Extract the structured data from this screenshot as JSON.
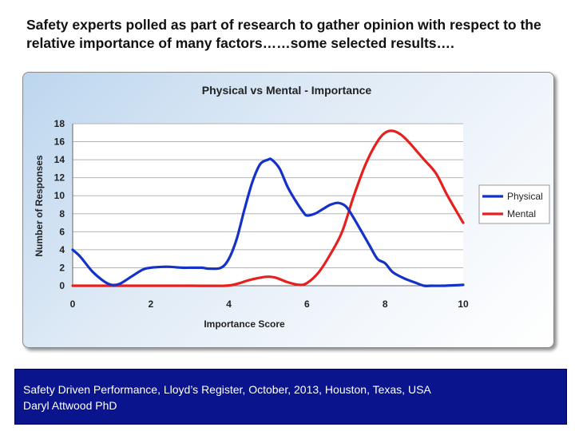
{
  "slide": {
    "title": "Safety experts polled as part of research to gather opinion with respect to the relative importance of many factors……some selected results….",
    "footer_line1": "Safety Driven Performance, Lloyd’s Register, October, 2013, Houston, Texas, USA",
    "footer_line2": "Daryl Attwood PhD"
  },
  "colors": {
    "physical": "#1432c8",
    "mental": "#e6201e",
    "footer_bg": "#0a148c"
  },
  "chart_data": {
    "type": "line",
    "title": "Physical vs Mental -  Importance",
    "xlabel": "Importance Score",
    "ylabel": "Number of Responses",
    "xlim": [
      0,
      10
    ],
    "ylim": [
      0,
      18
    ],
    "xticks": [
      0,
      2,
      4,
      6,
      8,
      10
    ],
    "yticks": [
      0,
      2,
      4,
      6,
      8,
      10,
      12,
      14,
      16,
      18
    ],
    "grid": true,
    "legend": "right",
    "series": [
      {
        "name": "Physical",
        "color": "#1432c8",
        "x": [
          0,
          0.2,
          0.5,
          0.8,
          1.0,
          1.2,
          1.5,
          1.8,
          2.0,
          2.3,
          2.5,
          2.8,
          3.0,
          3.3,
          3.5,
          3.8,
          4.0,
          4.2,
          4.4,
          4.6,
          4.8,
          5.0,
          5.1,
          5.3,
          5.5,
          5.7,
          5.9,
          6.0,
          6.2,
          6.4,
          6.6,
          6.8,
          7.0,
          7.2,
          7.4,
          7.6,
          7.8,
          8.0,
          8.2,
          8.5,
          8.8,
          9.0,
          9.2,
          9.5,
          10.0
        ],
        "values": [
          4.0,
          3.2,
          1.6,
          0.5,
          0.1,
          0.2,
          1.0,
          1.8,
          2.0,
          2.1,
          2.1,
          2.0,
          2.0,
          2.0,
          1.9,
          2.0,
          3.0,
          5.2,
          8.5,
          11.5,
          13.5,
          14.0,
          14.0,
          13.0,
          11.0,
          9.5,
          8.2,
          7.8,
          8.0,
          8.5,
          9.0,
          9.2,
          8.8,
          7.5,
          6.0,
          4.5,
          3.0,
          2.5,
          1.5,
          0.8,
          0.3,
          0.0,
          0.0,
          0.0,
          0.1
        ]
      },
      {
        "name": "Mental",
        "color": "#e6201e",
        "x": [
          0,
          1,
          2,
          3,
          3.9,
          4.2,
          4.5,
          4.8,
          5.0,
          5.2,
          5.5,
          5.8,
          6.0,
          6.3,
          6.6,
          6.9,
          7.2,
          7.5,
          7.8,
          8.0,
          8.2,
          8.4,
          8.6,
          8.8,
          9.0,
          9.3,
          9.6,
          10.0
        ],
        "values": [
          0,
          0,
          0,
          0,
          0,
          0.2,
          0.6,
          0.9,
          1.0,
          0.9,
          0.4,
          0.1,
          0.3,
          1.5,
          3.5,
          6.0,
          10.0,
          13.5,
          16.0,
          17.0,
          17.2,
          16.8,
          16.0,
          15.0,
          14.0,
          12.5,
          10.0,
          7.0
        ]
      }
    ]
  }
}
